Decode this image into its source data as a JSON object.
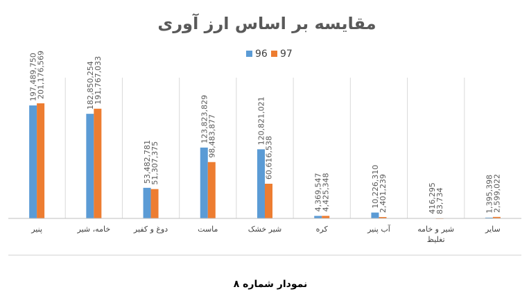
{
  "caption": "نمودار شماره ۸",
  "chart_data": {
    "type": "bar",
    "title": "مقایسه بر اساس ارز آوری",
    "xlabel": "",
    "ylabel": "",
    "ylim": [
      0,
      200000000
    ],
    "grid": true,
    "legend_position": "top-center",
    "categories": [
      [
        "پنیر"
      ],
      [
        "خامه، شیر"
      ],
      [
        "دوغ و کفیر"
      ],
      [
        "ماست"
      ],
      [
        "شیر خشک"
      ],
      [
        "کره"
      ],
      [
        "آب پنیر"
      ],
      [
        "شیر و خامه",
        "تغلیظ"
      ],
      [
        "سایر"
      ]
    ],
    "series": [
      {
        "name": "96",
        "color": "#5b9bd5",
        "values": [
          197489750,
          182850254,
          53482781,
          123823829,
          120821021,
          4369547,
          10226310,
          416295,
          1395398
        ],
        "labels": [
          "197,489,750",
          "182,850,254",
          "53,482,781",
          "123,823,829",
          "120,821,021",
          "4,369,547",
          "10,226,310",
          "416,295",
          "1,395,398"
        ]
      },
      {
        "name": "97",
        "color": "#ed7d31",
        "values": [
          201176569,
          191767033,
          51307375,
          98483877,
          60616538,
          4425348,
          2401239,
          83734,
          2599022
        ],
        "labels": [
          "201,176,569",
          "191,767,033",
          "51,307,375",
          "98,483,877",
          "60,616,538",
          "4,425,348",
          "2,401,239",
          "83,734",
          "2,599,022"
        ]
      }
    ]
  }
}
